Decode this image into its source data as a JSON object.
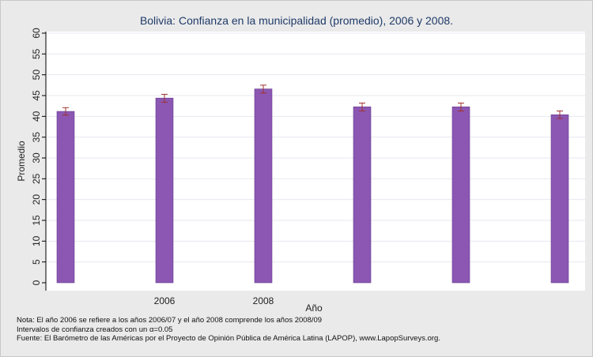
{
  "chart_data": {
    "type": "bar",
    "title": "Bolivia: Confianza en la municipalidad (promedio), 2006 y 2008.",
    "xlabel": "Año",
    "ylabel": "Promedio",
    "ylim": [
      0,
      60
    ],
    "yticks": [
      0,
      5,
      10,
      15,
      20,
      25,
      30,
      35,
      40,
      45,
      50,
      55,
      60
    ],
    "categories": [
      "",
      "2006",
      "2008",
      "",
      "",
      ""
    ],
    "values": [
      41.2,
      44.4,
      46.6,
      42.3,
      42.3,
      40.4
    ],
    "error_low": [
      40.3,
      43.4,
      45.6,
      41.3,
      41.3,
      39.5
    ],
    "error_high": [
      42.1,
      45.3,
      47.5,
      43.2,
      43.2,
      41.3
    ],
    "grid": true,
    "bar_color": "#8b57b2",
    "error_color": "#a03030"
  },
  "notes": {
    "line1": "Nota: El año 2006 se refiere a los años 2006/07 y el año 2008 comprende los años 2008/09",
    "line2": "Intervalos de confianza creados con un α=0.05",
    "line3": "Fuente: El Barómetro de las Américas por el Proyecto de Opinión Pública de América Latina (LAPOP), www.LapopSurveys.org."
  }
}
